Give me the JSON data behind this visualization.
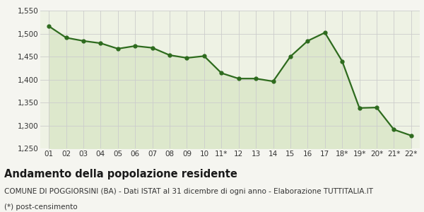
{
  "x_labels": [
    "01",
    "02",
    "03",
    "04",
    "05",
    "06",
    "07",
    "08",
    "09",
    "10",
    "11*",
    "12",
    "13",
    "14",
    "15",
    "16",
    "17",
    "18*",
    "19*",
    "20*",
    "21*",
    "22*"
  ],
  "y_values": [
    1516,
    1491,
    1484,
    1479,
    1467,
    1473,
    1469,
    1453,
    1447,
    1451,
    1414,
    1402,
    1402,
    1396,
    1450,
    1484,
    1502,
    1440,
    1338,
    1339,
    1291,
    1278
  ],
  "line_color": "#2e6b1e",
  "fill_color": "#dde8cc",
  "marker": "o",
  "marker_size": 3.5,
  "line_width": 1.6,
  "ylim": [
    1250,
    1550
  ],
  "yticks": [
    1250,
    1300,
    1350,
    1400,
    1450,
    1500,
    1550
  ],
  "grid_color": "#cccccc",
  "bg_color": "#f5f5f0",
  "plot_bg_color": "#eef2e4",
  "title": "Andamento della popolazione residente",
  "subtitle": "COMUNE DI POGGIORSINI (BA) - Dati ISTAT al 31 dicembre di ogni anno - Elaborazione TUTTITALIA.IT",
  "footnote": "(*) post-censimento",
  "title_fontsize": 10.5,
  "subtitle_fontsize": 7.5,
  "footnote_fontsize": 7.5,
  "tick_fontsize": 7.5
}
